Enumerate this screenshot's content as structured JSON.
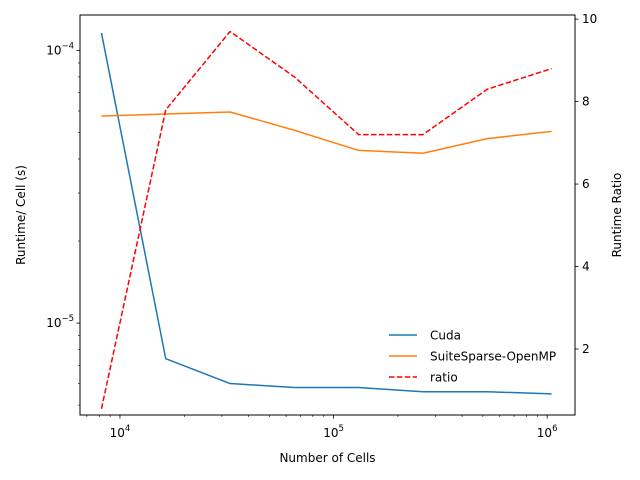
{
  "chart_data": {
    "type": "line",
    "title": "",
    "xlabel": "Number of Cells",
    "ylabel": "Runtime/ Cell (s)",
    "y2label": "Runtime Ratio",
    "xscale": "log",
    "yscale": "log",
    "xlim": [
      6500,
      1350000
    ],
    "ylim": [
      4.6e-06,
      0.000135
    ],
    "y2lim": [
      0.4,
      10.1
    ],
    "x": [
      8192,
      16384,
      32768,
      65536,
      131072,
      262144,
      524288,
      1048576
    ],
    "x_ticks": [
      {
        "value": 10000,
        "base": "10",
        "exp": "4"
      },
      {
        "value": 100000,
        "base": "10",
        "exp": "5"
      },
      {
        "value": 1000000,
        "base": "10",
        "exp": "6"
      }
    ],
    "y_ticks": [
      {
        "value": 1e-05,
        "base": "10",
        "exp": "−5"
      },
      {
        "value": 0.0001,
        "base": "10",
        "exp": "−4"
      }
    ],
    "y2_ticks": [
      2,
      4,
      6,
      8,
      10
    ],
    "series": [
      {
        "name": "Cuda",
        "axis": "left",
        "color": "#1f77b4",
        "dash": "solid",
        "values": [
          0.000116,
          7.4e-06,
          6e-06,
          5.8e-06,
          5.8e-06,
          5.6e-06,
          5.6e-06,
          5.5e-06
        ]
      },
      {
        "name": "SuiteSparse-OpenMP",
        "axis": "left",
        "color": "#ff7f0e",
        "dash": "solid",
        "values": [
          5.75e-05,
          5.85e-05,
          5.95e-05,
          5.1e-05,
          4.3e-05,
          4.2e-05,
          4.75e-05,
          5.05e-05
        ]
      },
      {
        "name": "ratio",
        "axis": "right",
        "color": "#ff0000",
        "dash": "dashed",
        "values": [
          0.55,
          7.8,
          9.7,
          8.6,
          7.2,
          7.2,
          8.3,
          8.8
        ]
      }
    ],
    "legend_position": "lower-right",
    "grid": false
  }
}
